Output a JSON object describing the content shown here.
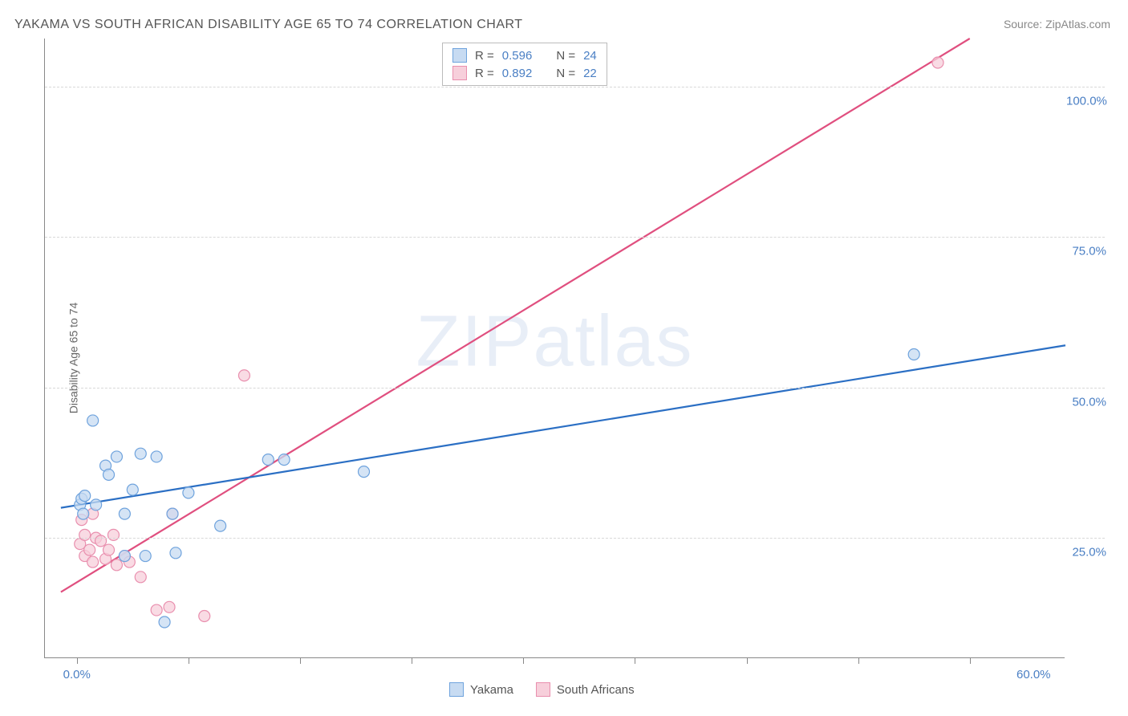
{
  "title": "YAKAMA VS SOUTH AFRICAN DISABILITY AGE 65 TO 74 CORRELATION CHART",
  "source": "Source: ZipAtlas.com",
  "y_axis_label": "Disability Age 65 to 74",
  "watermark": "ZIPatlas",
  "chart": {
    "type": "scatter-with-regression",
    "background_color": "#ffffff",
    "grid_color": "#d8d8d8",
    "axis_color": "#888888",
    "label_color": "#4a7fc4",
    "text_color": "#555555",
    "xlim": [
      -2,
      62
    ],
    "ylim": [
      5,
      108
    ],
    "y_ticks": [
      25.0,
      50.0,
      75.0,
      100.0
    ],
    "y_tick_labels": [
      "25.0%",
      "50.0%",
      "75.0%",
      "100.0%"
    ],
    "x_ticks": [
      0,
      7,
      14,
      21,
      28,
      35,
      42,
      49,
      56
    ],
    "x_labels": {
      "0": "0.0%",
      "60": "60.0%"
    },
    "series": [
      {
        "name": "Yakama",
        "color_fill": "#c7dbf2",
        "color_stroke": "#6fa3dd",
        "line_color": "#2b6fc4",
        "r": 0.596,
        "n": 24,
        "points": [
          [
            0.2,
            30.5
          ],
          [
            0.3,
            31.5
          ],
          [
            0.4,
            29
          ],
          [
            0.5,
            32
          ],
          [
            1,
            44.5
          ],
          [
            1.2,
            30.5
          ],
          [
            1.8,
            37
          ],
          [
            2,
            35.5
          ],
          [
            2.5,
            38.5
          ],
          [
            3,
            29
          ],
          [
            3,
            22
          ],
          [
            3.5,
            33
          ],
          [
            4,
            39
          ],
          [
            4.3,
            22
          ],
          [
            5,
            38.5
          ],
          [
            5.5,
            11
          ],
          [
            6,
            29
          ],
          [
            7,
            32.5
          ],
          [
            9,
            27
          ],
          [
            12,
            38
          ],
          [
            13,
            38
          ],
          [
            18,
            36
          ],
          [
            52.5,
            55.5
          ],
          [
            6.2,
            22.5
          ]
        ],
        "regression": {
          "x1": -1,
          "y1": 30,
          "x2": 62,
          "y2": 57
        }
      },
      {
        "name": "South Africans",
        "color_fill": "#f7cfdb",
        "color_stroke": "#e98fae",
        "line_color": "#e04f7f",
        "r": 0.892,
        "n": 22,
        "points": [
          [
            0.2,
            24
          ],
          [
            0.3,
            28
          ],
          [
            0.5,
            22
          ],
          [
            0.5,
            25.5
          ],
          [
            0.8,
            23
          ],
          [
            1,
            29
          ],
          [
            1,
            21
          ],
          [
            1.2,
            25
          ],
          [
            1.5,
            24.5
          ],
          [
            1.8,
            21.5
          ],
          [
            2,
            23
          ],
          [
            2.3,
            25.5
          ],
          [
            2.5,
            20.5
          ],
          [
            3,
            22
          ],
          [
            3.3,
            21
          ],
          [
            4,
            18.5
          ],
          [
            5,
            13
          ],
          [
            5.8,
            13.5
          ],
          [
            6,
            29
          ],
          [
            8,
            12
          ],
          [
            10.5,
            52
          ],
          [
            54,
            104
          ]
        ],
        "regression": {
          "x1": -1,
          "y1": 16,
          "x2": 56,
          "y2": 108
        }
      }
    ],
    "marker_radius": 7,
    "line_width": 2.2
  },
  "stat_legend": {
    "rows": [
      {
        "swatch_fill": "#c7dbf2",
        "swatch_stroke": "#6fa3dd",
        "r_label": "R =",
        "r_val": "0.596",
        "n_label": "N =",
        "n_val": "24"
      },
      {
        "swatch_fill": "#f7cfdb",
        "swatch_stroke": "#e98fae",
        "r_label": "R =",
        "r_val": "0.892",
        "n_label": "N =",
        "n_val": "22"
      }
    ]
  },
  "bottom_legend": {
    "items": [
      {
        "swatch_fill": "#c7dbf2",
        "swatch_stroke": "#6fa3dd",
        "label": "Yakama"
      },
      {
        "swatch_fill": "#f7cfdb",
        "swatch_stroke": "#e98fae",
        "label": "South Africans"
      }
    ]
  }
}
